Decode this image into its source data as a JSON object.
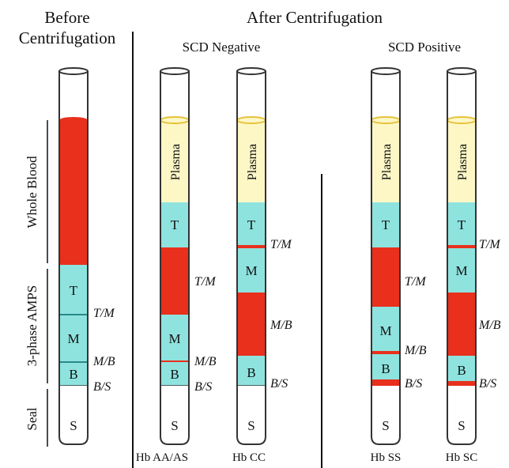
{
  "headers": {
    "before_line1": "Before",
    "before_line2": "Centrifugation",
    "after": "After Centrifugation",
    "scd_negative": "SCD Negative",
    "scd_positive": "SCD Positive"
  },
  "side_labels": {
    "whole_blood": "Whole Blood",
    "amps": "3-phase AMPS",
    "seal": "Seal"
  },
  "tube_labels": {
    "hb_aa_as": "Hb AA/AS",
    "hb_cc": "Hb CC",
    "hb_ss": "Hb SS",
    "hb_sc": "Hb SC"
  },
  "segments": {
    "plasma": "Plasma",
    "t": "T",
    "m": "M",
    "b": "B",
    "s": "S"
  },
  "interfaces": {
    "tm": "T/M",
    "mb": "M/B",
    "bs": "B/S"
  },
  "colors": {
    "red_cells": "#e8301c",
    "amps_phase": "#8fe3df",
    "plasma": "#fdf7c6",
    "plasma_meniscus": "#e6c23a",
    "seal": "#ffffff",
    "outline": "#333333"
  }
}
